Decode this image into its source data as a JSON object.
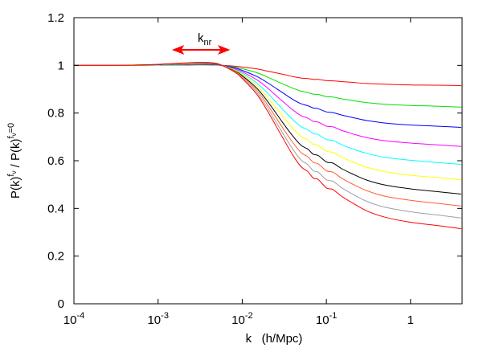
{
  "chart_data": {
    "type": "line",
    "title": "",
    "xlabel": "k   (h/Mpc)",
    "ylabel": {
      "base1": "P(k)",
      "sup1": "f",
      "sub1": "ν",
      "slash": " / ",
      "base2": "P(k)",
      "sup2": "f",
      "sub2": "ν",
      "sup2_tail": "=0"
    },
    "x_scale": "log",
    "xlim": [
      0.0001,
      4.1
    ],
    "ylim": [
      0,
      1.2
    ],
    "grid": false,
    "x_ticks": [
      {
        "value": 0.0001,
        "base": "10",
        "exp": "-4"
      },
      {
        "value": 0.001,
        "base": "10",
        "exp": "-3"
      },
      {
        "value": 0.01,
        "base": "10",
        "exp": "-2"
      },
      {
        "value": 0.1,
        "base": "10",
        "exp": "-1"
      },
      {
        "value": 1,
        "base": "1",
        "exp": ""
      }
    ],
    "y_ticks": [
      {
        "value": 0,
        "label": "0"
      },
      {
        "value": 0.2,
        "label": "0.2"
      },
      {
        "value": 0.4,
        "label": "0.4"
      },
      {
        "value": 0.6,
        "label": "0.6"
      },
      {
        "value": 0.8,
        "label": "0.8"
      },
      {
        "value": 1,
        "label": "1"
      },
      {
        "value": 1.2,
        "label": "1.2"
      }
    ],
    "annotation": {
      "text_base": "k",
      "text_sub": "nr",
      "arrow_from_k": 0.0015,
      "arrow_to_k": 0.007,
      "arrow_y": 1.065,
      "color": "#ff0000",
      "style": "double-arrow"
    },
    "k": [
      0.0001,
      0.0005,
      0.001,
      0.002,
      0.003,
      0.005,
      0.008,
      0.01,
      0.015,
      0.02,
      0.03,
      0.04,
      0.05,
      0.06,
      0.07,
      0.08,
      0.1,
      0.12,
      0.15,
      0.2,
      0.3,
      0.5,
      1,
      2,
      4
    ],
    "series": [
      {
        "color": "#ff0000",
        "values": [
          1,
          1,
          1.001,
          1.001,
          1.002,
          1.001,
          0.997,
          0.993,
          0.985,
          0.976,
          0.963,
          0.953,
          0.947,
          0.945,
          0.941,
          0.941,
          0.936,
          0.935,
          0.932,
          0.929,
          0.924,
          0.921,
          0.918,
          0.917,
          0.915
        ]
      },
      {
        "color": "#00e000",
        "values": [
          1,
          1,
          1.001,
          1.002,
          1.003,
          1.002,
          0.993,
          0.986,
          0.969,
          0.951,
          0.923,
          0.904,
          0.892,
          0.886,
          0.879,
          0.878,
          0.869,
          0.867,
          0.86,
          0.853,
          0.844,
          0.837,
          0.832,
          0.829,
          0.825
        ]
      },
      {
        "color": "#0000ff",
        "values": [
          1,
          1.001,
          1.002,
          1.004,
          1.005,
          1.003,
          0.99,
          0.979,
          0.953,
          0.927,
          0.886,
          0.857,
          0.839,
          0.831,
          0.821,
          0.818,
          0.805,
          0.802,
          0.792,
          0.782,
          0.769,
          0.758,
          0.75,
          0.745,
          0.74
        ]
      },
      {
        "color": "#ff00ff",
        "values": [
          1,
          1.001,
          1.002,
          1.005,
          1.006,
          1.004,
          0.986,
          0.973,
          0.939,
          0.905,
          0.85,
          0.813,
          0.789,
          0.779,
          0.765,
          0.762,
          0.745,
          0.742,
          0.728,
          0.714,
          0.697,
          0.684,
          0.674,
          0.667,
          0.66
        ]
      },
      {
        "color": "#00ffff",
        "values": [
          1,
          1.001,
          1.002,
          1.006,
          1.007,
          1.005,
          0.983,
          0.967,
          0.925,
          0.884,
          0.817,
          0.772,
          0.743,
          0.73,
          0.714,
          0.71,
          0.689,
          0.685,
          0.668,
          0.651,
          0.631,
          0.614,
          0.602,
          0.593,
          0.585
        ]
      },
      {
        "color": "#ffff00",
        "values": [
          1,
          1.001,
          1.003,
          1.007,
          1.009,
          1.006,
          0.981,
          0.962,
          0.914,
          0.866,
          0.789,
          0.736,
          0.702,
          0.688,
          0.669,
          0.664,
          0.64,
          0.635,
          0.616,
          0.597,
          0.573,
          0.554,
          0.539,
          0.53,
          0.52
        ]
      },
      {
        "color": "#000000",
        "values": [
          1,
          1.001,
          1.003,
          1.008,
          1.01,
          1.006,
          0.978,
          0.957,
          0.903,
          0.849,
          0.762,
          0.703,
          0.665,
          0.649,
          0.627,
          0.622,
          0.595,
          0.59,
          0.568,
          0.546,
          0.519,
          0.498,
          0.482,
          0.471,
          0.46
        ]
      },
      {
        "color": "#ff6030",
        "values": [
          1,
          1.001,
          1.004,
          1.008,
          1.011,
          1.007,
          0.976,
          0.953,
          0.894,
          0.835,
          0.74,
          0.676,
          0.634,
          0.617,
          0.593,
          0.587,
          0.558,
          0.552,
          0.528,
          0.504,
          0.475,
          0.451,
          0.434,
          0.422,
          0.41
        ]
      },
      {
        "color": "#a0a0a0",
        "values": [
          1,
          1.001,
          1.004,
          1.009,
          1.012,
          1.008,
          0.974,
          0.949,
          0.885,
          0.821,
          0.718,
          0.648,
          0.603,
          0.584,
          0.558,
          0.552,
          0.52,
          0.514,
          0.488,
          0.462,
          0.43,
          0.405,
          0.386,
          0.373,
          0.36
        ]
      },
      {
        "color": "#ff0000",
        "values": [
          1,
          1.001,
          1.004,
          1.01,
          1.012,
          1.008,
          0.973,
          0.945,
          0.877,
          0.808,
          0.699,
          0.623,
          0.575,
          0.555,
          0.527,
          0.521,
          0.486,
          0.479,
          0.452,
          0.425,
          0.39,
          0.363,
          0.342,
          0.329,
          0.315
        ]
      }
    ]
  }
}
